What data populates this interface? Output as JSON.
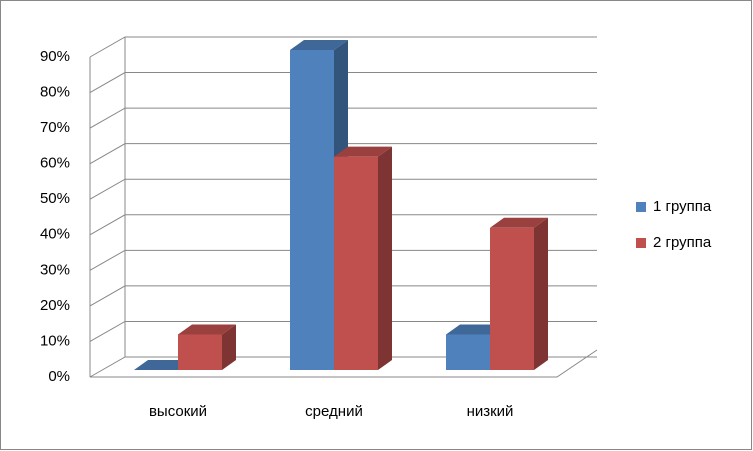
{
  "chart_data": {
    "type": "bar3d",
    "categories": [
      "высокий",
      "средний",
      "низкий"
    ],
    "series": [
      {
        "name": "1 группа",
        "color": "#4f81bd",
        "values": [
          0,
          90,
          10
        ]
      },
      {
        "name": "2 группа",
        "color": "#c0504d",
        "values": [
          10,
          60,
          40
        ]
      }
    ],
    "ylim": [
      0,
      90
    ],
    "yticks": [
      {
        "value": 0,
        "label": "0%"
      },
      {
        "value": 10,
        "label": "10%"
      },
      {
        "value": 20,
        "label": "20%"
      },
      {
        "value": 30,
        "label": "30%"
      },
      {
        "value": 40,
        "label": "40%"
      },
      {
        "value": 50,
        "label": "50%"
      },
      {
        "value": 60,
        "label": "60%"
      },
      {
        "value": 70,
        "label": "70%"
      },
      {
        "value": 80,
        "label": "80%"
      },
      {
        "value": 90,
        "label": "90%"
      }
    ],
    "grid": true,
    "legend": "right"
  }
}
